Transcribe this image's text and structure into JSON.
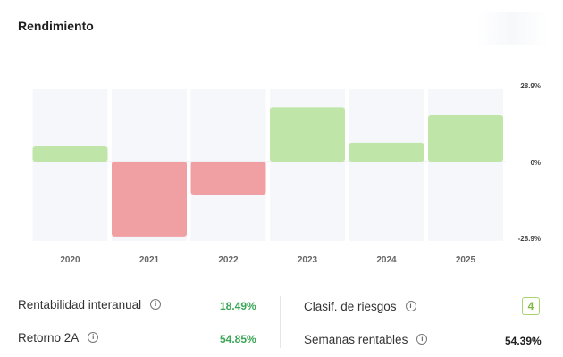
{
  "header": {
    "title": "Rendimiento"
  },
  "chart_data": {
    "type": "bar",
    "categories": [
      "2020",
      "2021",
      "2022",
      "2023",
      "2024",
      "2025"
    ],
    "values": [
      5.8,
      -28.5,
      -12.6,
      20.6,
      7.2,
      17.7
    ],
    "ylim": [
      -28.9,
      28.9
    ],
    "y_ticks": [
      "28.9%",
      "0%",
      "-28.9%"
    ],
    "grid": false,
    "colors": {
      "positive": "#bfe6a8",
      "negative": "#f0a0a3",
      "column_bg": "#f3f4f8"
    }
  },
  "metrics": {
    "rentabilidad": {
      "label": "Rentabilidad interanual",
      "value": "18.49%"
    },
    "retorno": {
      "label": "Retorno 2A",
      "value": "54.85%"
    },
    "riesgos": {
      "label": "Clasif. de riesgos",
      "value": "4"
    },
    "semanas": {
      "label": "Semanas rentables",
      "value": "54.39%"
    }
  }
}
